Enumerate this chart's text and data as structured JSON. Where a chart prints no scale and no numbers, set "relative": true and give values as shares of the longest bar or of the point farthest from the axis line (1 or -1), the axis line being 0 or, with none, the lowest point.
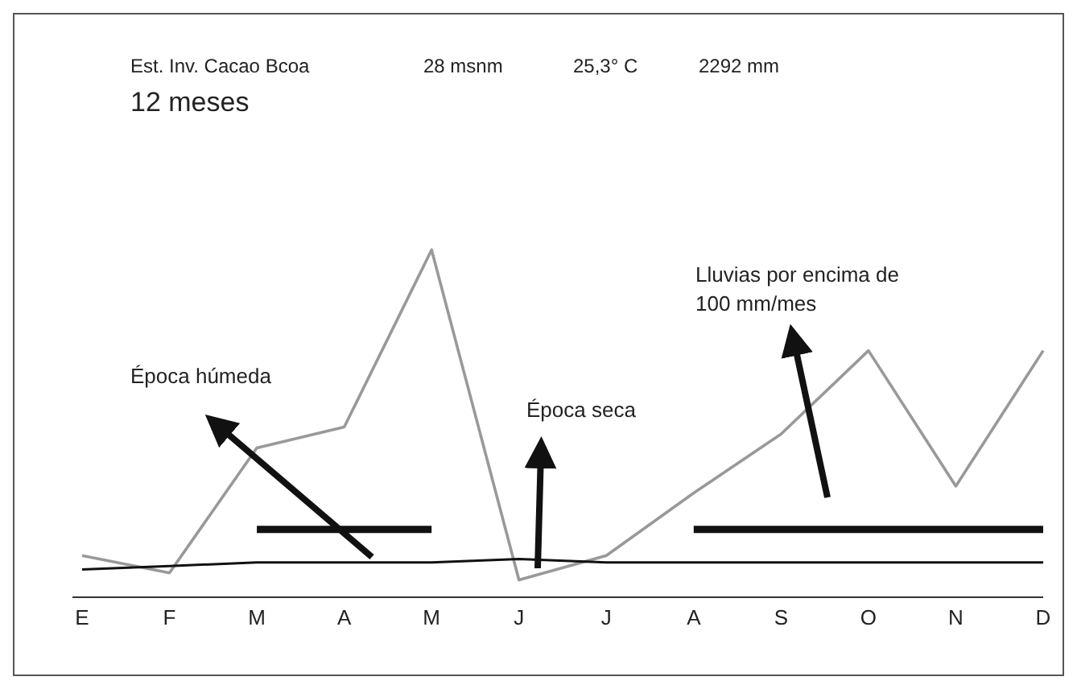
{
  "chart_data": {
    "type": "line",
    "relative": true,
    "categories": [
      "E",
      "F",
      "M",
      "A",
      "M",
      "J",
      "J",
      "A",
      "S",
      "O",
      "N",
      "D"
    ],
    "series": [
      {
        "color": "#999999",
        "values": [
          0.12,
          0.07,
          0.43,
          0.49,
          1,
          0.05,
          0.12,
          0.3,
          0.47,
          0.71,
          0.32,
          0.71
        ]
      },
      {
        "color": "#111111",
        "values": [
          0.08,
          0.09,
          0.1,
          0.1,
          0.1,
          0.11,
          0.1,
          0.1,
          0.1,
          0.1,
          0.1,
          0.1
        ]
      },
      {
        "color": "#111111",
        "values": [
          null,
          null,
          0.195,
          0.195,
          0.195,
          null,
          null,
          0.195,
          0.195,
          0.195,
          0.195,
          0.195
        ]
      }
    ],
    "annotations": [
      "Est. Inv. Cacao Bcoa",
      "28 msnm",
      "25,3° C",
      "2292 mm",
      "12 meses",
      "Época húmeda",
      "Época seca",
      "Lluvias por encima de 100 mm/mes"
    ],
    "marker": "none",
    "line_style": "solid"
  }
}
